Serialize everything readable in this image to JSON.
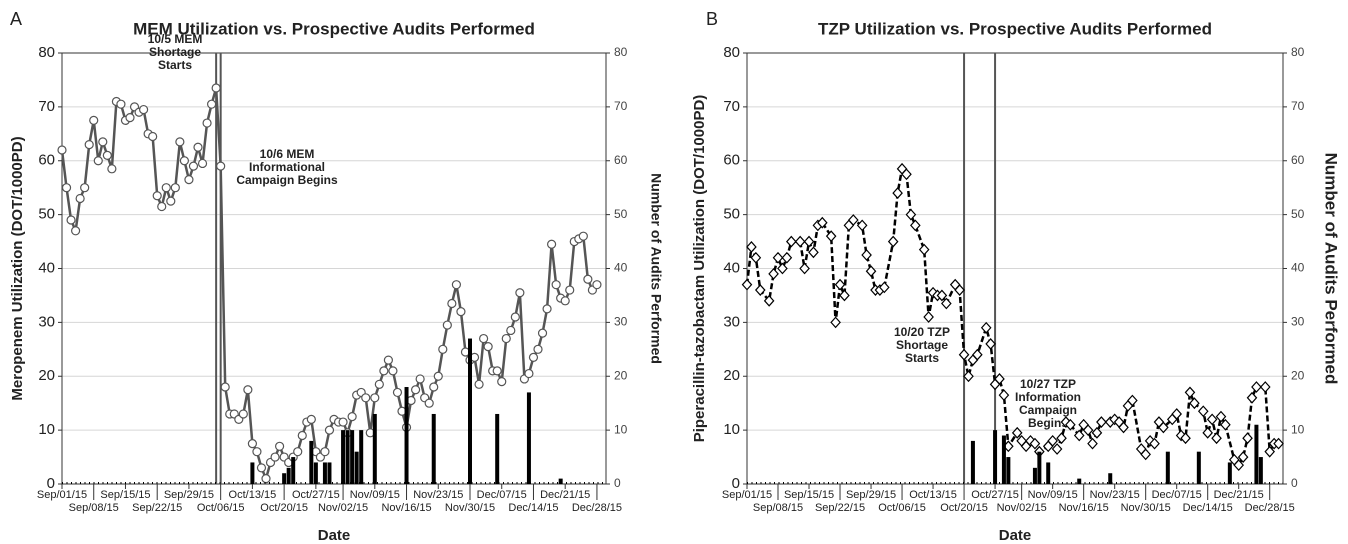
{
  "chart_data": [
    {
      "type": "line",
      "panel": "A",
      "title": "MEM Utilization vs. Prospective Audits Performed",
      "xlabel": "Date",
      "ylabel": "Meropenem Utilization (DOT/1000PD)",
      "y2label": "Number of Audits Performed",
      "xlim": [
        0,
        120
      ],
      "xticks": [
        {
          "value": 0,
          "label": "Sep/01/15"
        },
        {
          "value": 7,
          "label": "Sep/08/15"
        },
        {
          "value": 14,
          "label": "Sep/15/15"
        },
        {
          "value": 21,
          "label": "Sep/22/15"
        },
        {
          "value": 28,
          "label": "Sep/29/15"
        },
        {
          "value": 35,
          "label": "Oct/06/15"
        },
        {
          "value": 42,
          "label": "Oct/13/15"
        },
        {
          "value": 49,
          "label": "Oct/20/15"
        },
        {
          "value": 56,
          "label": "Oct/27/15"
        },
        {
          "value": 62,
          "label": "Nov/02/15"
        },
        {
          "value": 69,
          "label": "Nov/09/15"
        },
        {
          "value": 76,
          "label": "Nov/16/15"
        },
        {
          "value": 83,
          "label": "Nov/23/15"
        },
        {
          "value": 90,
          "label": "Nov/30/15"
        },
        {
          "value": 97,
          "label": "Dec/07/15"
        },
        {
          "value": 104,
          "label": "Dec/14/15"
        },
        {
          "value": 111,
          "label": "Dec/21/15"
        },
        {
          "value": 118,
          "label": "Dec/28/15"
        }
      ],
      "ylim": [
        0,
        80
      ],
      "yticks": [
        0,
        10,
        20,
        30,
        40,
        50,
        60,
        70,
        80
      ],
      "y2lim": [
        0,
        80
      ],
      "y2ticks": [
        0,
        10,
        20,
        30,
        40,
        50,
        60,
        70,
        80
      ],
      "grid": true,
      "vlines": [
        34,
        35
      ],
      "annotations": [
        [
          "10/5 MEM",
          "Shortage",
          "Starts"
        ],
        [
          "10/6 MEM",
          "Informational",
          "Campaign Begins"
        ]
      ],
      "series": [
        {
          "type": "line",
          "marker": "circle",
          "dashed": false,
          "color": "#555555",
          "x": [
            0,
            1,
            2,
            3,
            4,
            5,
            6,
            7,
            8,
            9,
            10,
            11,
            12,
            13,
            14,
            15,
            16,
            17,
            18,
            19,
            20,
            21,
            22,
            23,
            24,
            25,
            26,
            27,
            28,
            29,
            30,
            31,
            32,
            33,
            34,
            35,
            36,
            37,
            38,
            39,
            40,
            41,
            42,
            43,
            44,
            45,
            46,
            47,
            48,
            49,
            50,
            51,
            52,
            53,
            54,
            55,
            56,
            57,
            58,
            59,
            60,
            61,
            62,
            63,
            64,
            65,
            66,
            67,
            68,
            69,
            70,
            71,
            72,
            73,
            74,
            75,
            76,
            77,
            78,
            79,
            80,
            81,
            82,
            83,
            84,
            85,
            86,
            87,
            88,
            89,
            90,
            91,
            92,
            93,
            94,
            95,
            96,
            97,
            98,
            99,
            100,
            101,
            102,
            103,
            104,
            105,
            106,
            107,
            108,
            109,
            110,
            111,
            112,
            113,
            114,
            115,
            116,
            117,
            118
          ],
          "values": [
            62,
            55,
            49,
            47,
            53,
            55,
            63,
            67.5,
            60,
            63.5,
            61,
            58.5,
            71,
            70.5,
            67.5,
            68,
            70,
            69,
            69.5,
            65,
            64.5,
            53.5,
            51.5,
            55,
            52.5,
            55,
            63.5,
            60,
            56.5,
            59,
            62.5,
            59.5,
            67,
            70.5,
            73.5,
            59,
            18,
            13,
            13,
            12,
            13,
            17.5,
            7.5,
            6,
            3,
            1,
            4,
            5,
            7,
            5,
            4,
            5,
            6,
            9,
            11.5,
            12,
            6,
            5,
            6,
            10,
            12,
            11.5,
            11.5,
            9.5,
            12.5,
            16.5,
            17,
            16,
            9.5,
            16,
            18.5,
            21,
            23,
            21,
            17,
            13.5,
            10.5,
            15.5,
            17.5,
            19.5,
            16,
            15,
            18,
            20,
            25,
            29.5,
            33.5,
            37,
            32,
            24.5,
            23,
            23.5,
            18.5,
            27,
            25.5,
            21,
            21,
            19,
            27,
            28.5,
            31,
            35.5,
            19.5,
            20.5,
            23.5,
            25,
            28,
            32.5,
            44.5,
            37,
            34.5,
            34,
            36,
            45,
            45.5,
            46,
            38,
            36,
            37
          ]
        },
        {
          "type": "bar",
          "axis": "y2",
          "color": "#000000",
          "x": [
            42,
            49,
            50,
            51,
            55,
            56,
            58,
            59,
            62,
            63,
            64,
            65,
            66,
            69,
            76,
            82,
            90,
            96,
            103,
            110
          ],
          "values": [
            4,
            2,
            3,
            5,
            8,
            4,
            4,
            4,
            10,
            10,
            10,
            6,
            10,
            13,
            18,
            13,
            27,
            13,
            17,
            1
          ]
        }
      ]
    },
    {
      "type": "line",
      "panel": "B",
      "title": "TZP Utilization vs. Prospective Audits Performed",
      "xlabel": "Date",
      "ylabel": "Piperacillin-tazobactam Utilization (DOT/1000PD)",
      "y2label": "Number of Audits Performed",
      "xlim": [
        0,
        121
      ],
      "xticks": [
        {
          "value": 0,
          "label": "Sep/01/15"
        },
        {
          "value": 7,
          "label": "Sep/08/15"
        },
        {
          "value": 14,
          "label": "Sep/15/15"
        },
        {
          "value": 21,
          "label": "Sep/22/15"
        },
        {
          "value": 28,
          "label": "Sep/29/15"
        },
        {
          "value": 35,
          "label": "Oct/06/15"
        },
        {
          "value": 42,
          "label": "Oct/13/15"
        },
        {
          "value": 49,
          "label": "Oct/20/15"
        },
        {
          "value": 56,
          "label": "Oct/27/15"
        },
        {
          "value": 62,
          "label": "Nov/02/15"
        },
        {
          "value": 69,
          "label": "Nov/09/15"
        },
        {
          "value": 76,
          "label": "Nov/16/15"
        },
        {
          "value": 83,
          "label": "Nov/23/15"
        },
        {
          "value": 90,
          "label": "Nov/30/15"
        },
        {
          "value": 97,
          "label": "Dec/07/15"
        },
        {
          "value": 104,
          "label": "Dec/14/15"
        },
        {
          "value": 111,
          "label": "Dec/21/15"
        },
        {
          "value": 118,
          "label": "Dec/28/15"
        }
      ],
      "ylim": [
        0,
        80
      ],
      "yticks": [
        0,
        10,
        20,
        30,
        40,
        50,
        60,
        70,
        80
      ],
      "y2lim": [
        0,
        80
      ],
      "y2ticks": [
        0,
        10,
        20,
        30,
        40,
        50,
        60,
        70,
        80
      ],
      "grid": true,
      "vlines": [
        49,
        56
      ],
      "annotations": [
        [
          "10/20 TZP",
          "Shortage",
          "Starts"
        ],
        [
          "10/27 TZP",
          "Information",
          "Campaign",
          "Begins"
        ]
      ],
      "series": [
        {
          "type": "line",
          "marker": "diamond",
          "dashed": true,
          "color": "#000000",
          "x": [
            0,
            1,
            2,
            3,
            5,
            6,
            7,
            8,
            9,
            10,
            12,
            13,
            14,
            15,
            16,
            17,
            19,
            20,
            21,
            22,
            23,
            24,
            26,
            27,
            28,
            29,
            30,
            31,
            33,
            34,
            35,
            36,
            37,
            38,
            40,
            41,
            42,
            43,
            44,
            45,
            47,
            48,
            49,
            50,
            51,
            52,
            54,
            55,
            56,
            57,
            58,
            59,
            61,
            62,
            63,
            64,
            65,
            66,
            68,
            69,
            70,
            71,
            72,
            73,
            75,
            76,
            77,
            78,
            79,
            80,
            82,
            83,
            84,
            85,
            86,
            87,
            89,
            90,
            91,
            92,
            93,
            94,
            96,
            97,
            98,
            99,
            100,
            101,
            103,
            104,
            105,
            106,
            107,
            108,
            110,
            111,
            112,
            113,
            114,
            115,
            117,
            118,
            119,
            120
          ],
          "values": [
            37,
            44,
            42,
            36,
            34,
            39,
            42,
            40,
            42,
            45,
            45,
            40,
            45,
            43,
            48,
            48.5,
            46,
            30,
            37,
            35,
            48,
            49,
            48,
            42.5,
            39.5,
            36,
            36,
            36.5,
            45,
            54,
            58.5,
            57.5,
            50,
            48,
            43.5,
            31,
            35.5,
            35,
            35,
            33.5,
            37,
            36,
            24,
            20,
            23,
            24,
            29,
            26,
            18.5,
            19.5,
            16.5,
            7,
            9.5,
            8,
            7,
            8,
            7.5,
            6,
            7,
            8,
            6.5,
            8.5,
            11.5,
            11,
            9,
            11,
            10,
            7.5,
            9.5,
            11.5,
            11.5,
            12,
            11.5,
            10.5,
            14.5,
            15.5,
            6.5,
            5.5,
            8,
            7.5,
            11.5,
            10.5,
            12,
            13,
            9,
            8.5,
            17,
            15,
            13.5,
            9.5,
            12,
            8.5,
            12.5,
            11,
            4.5,
            3.5,
            5,
            8.5,
            16,
            18,
            18,
            6,
            7.5,
            7.5
          ]
        },
        {
          "type": "bar",
          "axis": "y2",
          "color": "#000000",
          "x": [
            51,
            56,
            58,
            59,
            65,
            66,
            68,
            75,
            82,
            95,
            102,
            109,
            115,
            116
          ],
          "values": [
            8,
            10,
            9,
            5,
            3,
            6,
            4,
            1,
            2,
            6,
            6,
            4,
            11,
            5
          ]
        }
      ]
    }
  ]
}
